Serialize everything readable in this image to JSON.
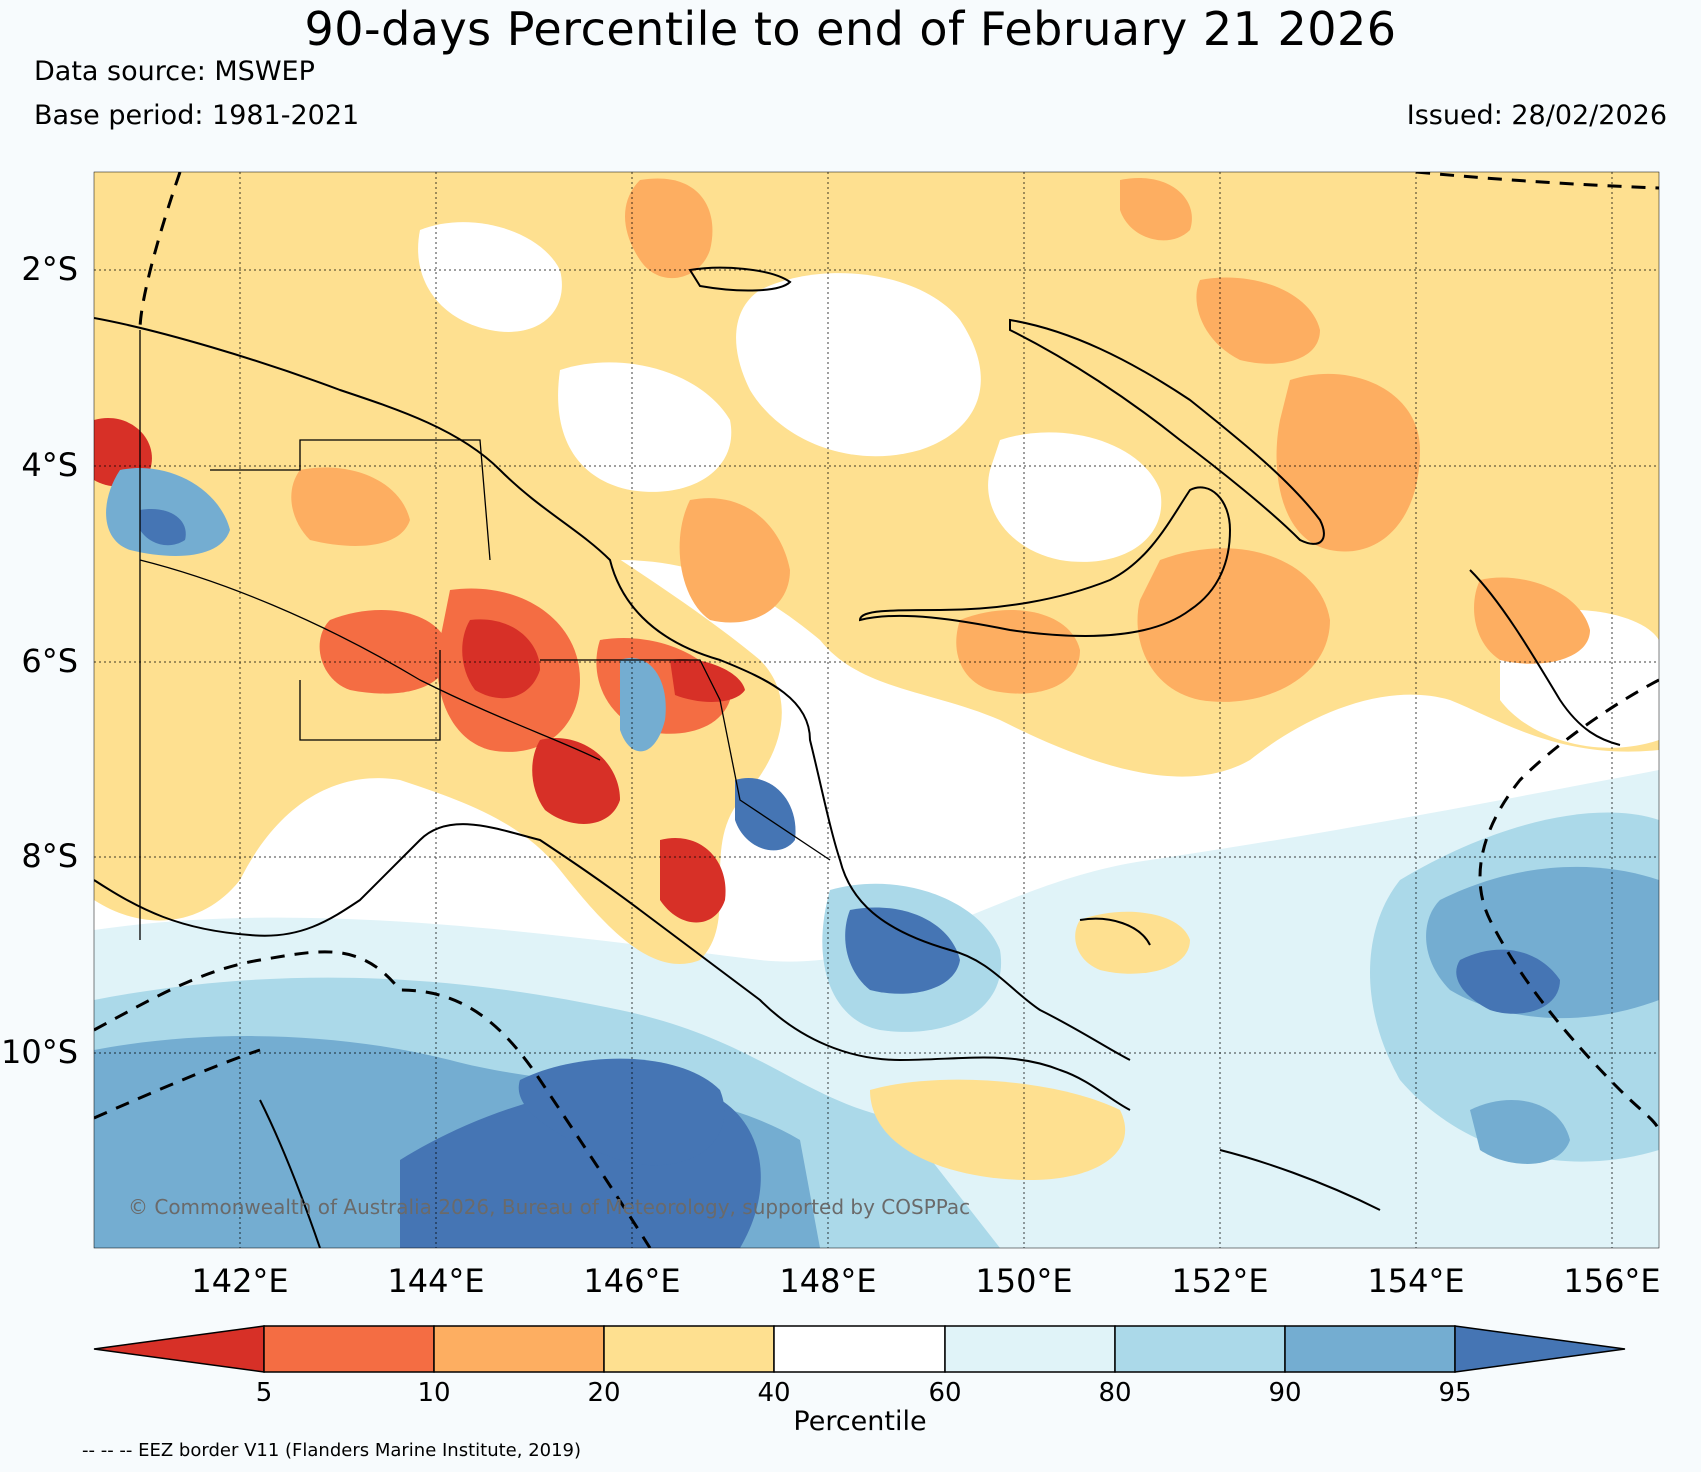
{
  "title": "90-days Percentile to end of February 21 2026",
  "data_source": "Data source: MSWEP",
  "base_period": "Base period: 1981-2021",
  "issued": "Issued: 28/02/2026",
  "credit": "© Commonwealth of Australia 2026, Bureau of Meteorology, supported by COSPPac",
  "eez_note": "-- -- -- EEZ border V11 (Flanders Marine Institute, 2019)",
  "map": {
    "lon_range": [
      140.5,
      156.5
    ],
    "lat_range": [
      -12.0,
      -1.0
    ],
    "lat_ticks": [
      {
        "value": -2,
        "label": "2°S"
      },
      {
        "value": -4,
        "label": "4°S"
      },
      {
        "value": -6,
        "label": "6°S"
      },
      {
        "value": -8,
        "label": "8°S"
      },
      {
        "value": -10,
        "label": "10°S"
      }
    ],
    "lon_ticks": [
      {
        "value": 142,
        "label": "142°E"
      },
      {
        "value": 144,
        "label": "144°E"
      },
      {
        "value": 146,
        "label": "146°E"
      },
      {
        "value": 148,
        "label": "148°E"
      },
      {
        "value": 150,
        "label": "150°E"
      },
      {
        "value": 152,
        "label": "152°E"
      },
      {
        "value": 154,
        "label": "154°E"
      },
      {
        "value": 156,
        "label": "156°E"
      }
    ]
  },
  "colorbar": {
    "title": "Percentile",
    "ticks": [
      "5",
      "10",
      "20",
      "40",
      "60",
      "80",
      "90",
      "95"
    ],
    "colors": {
      "lt5": "#d73027",
      "5-10": "#f46d43",
      "10-20": "#fdae61",
      "20-40": "#fee090",
      "40-60": "#ffffff",
      "60-80": "#e0f3f8",
      "80-90": "#abd9e9",
      "90-95": "#74add1",
      "gt95": "#4575b4"
    }
  }
}
